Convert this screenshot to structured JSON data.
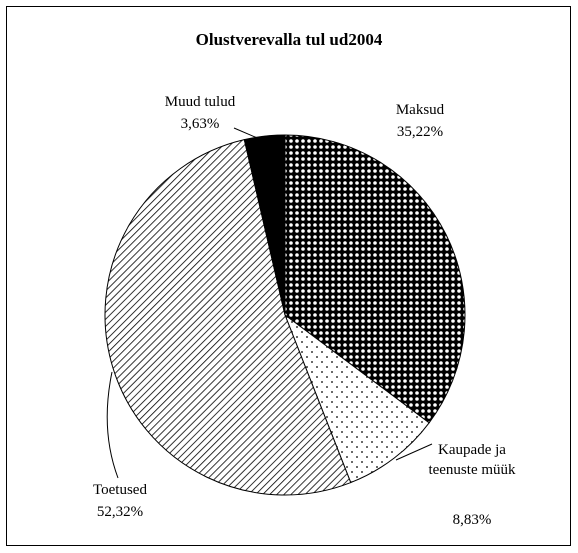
{
  "chart_data": {
    "type": "pie",
    "title": "Olustverevalla tul ud2004",
    "categories": [
      "Maksud",
      "Kaupade ja teenuste müük",
      "Toetused",
      "Muud tulud"
    ],
    "values": [
      35.22,
      8.83,
      52.32,
      3.63
    ],
    "value_labels": [
      "35,22%",
      "8,83%",
      "52,32%",
      "3,63%"
    ],
    "patterns": [
      "checker",
      "dots",
      "hatch",
      "solid"
    ]
  }
}
